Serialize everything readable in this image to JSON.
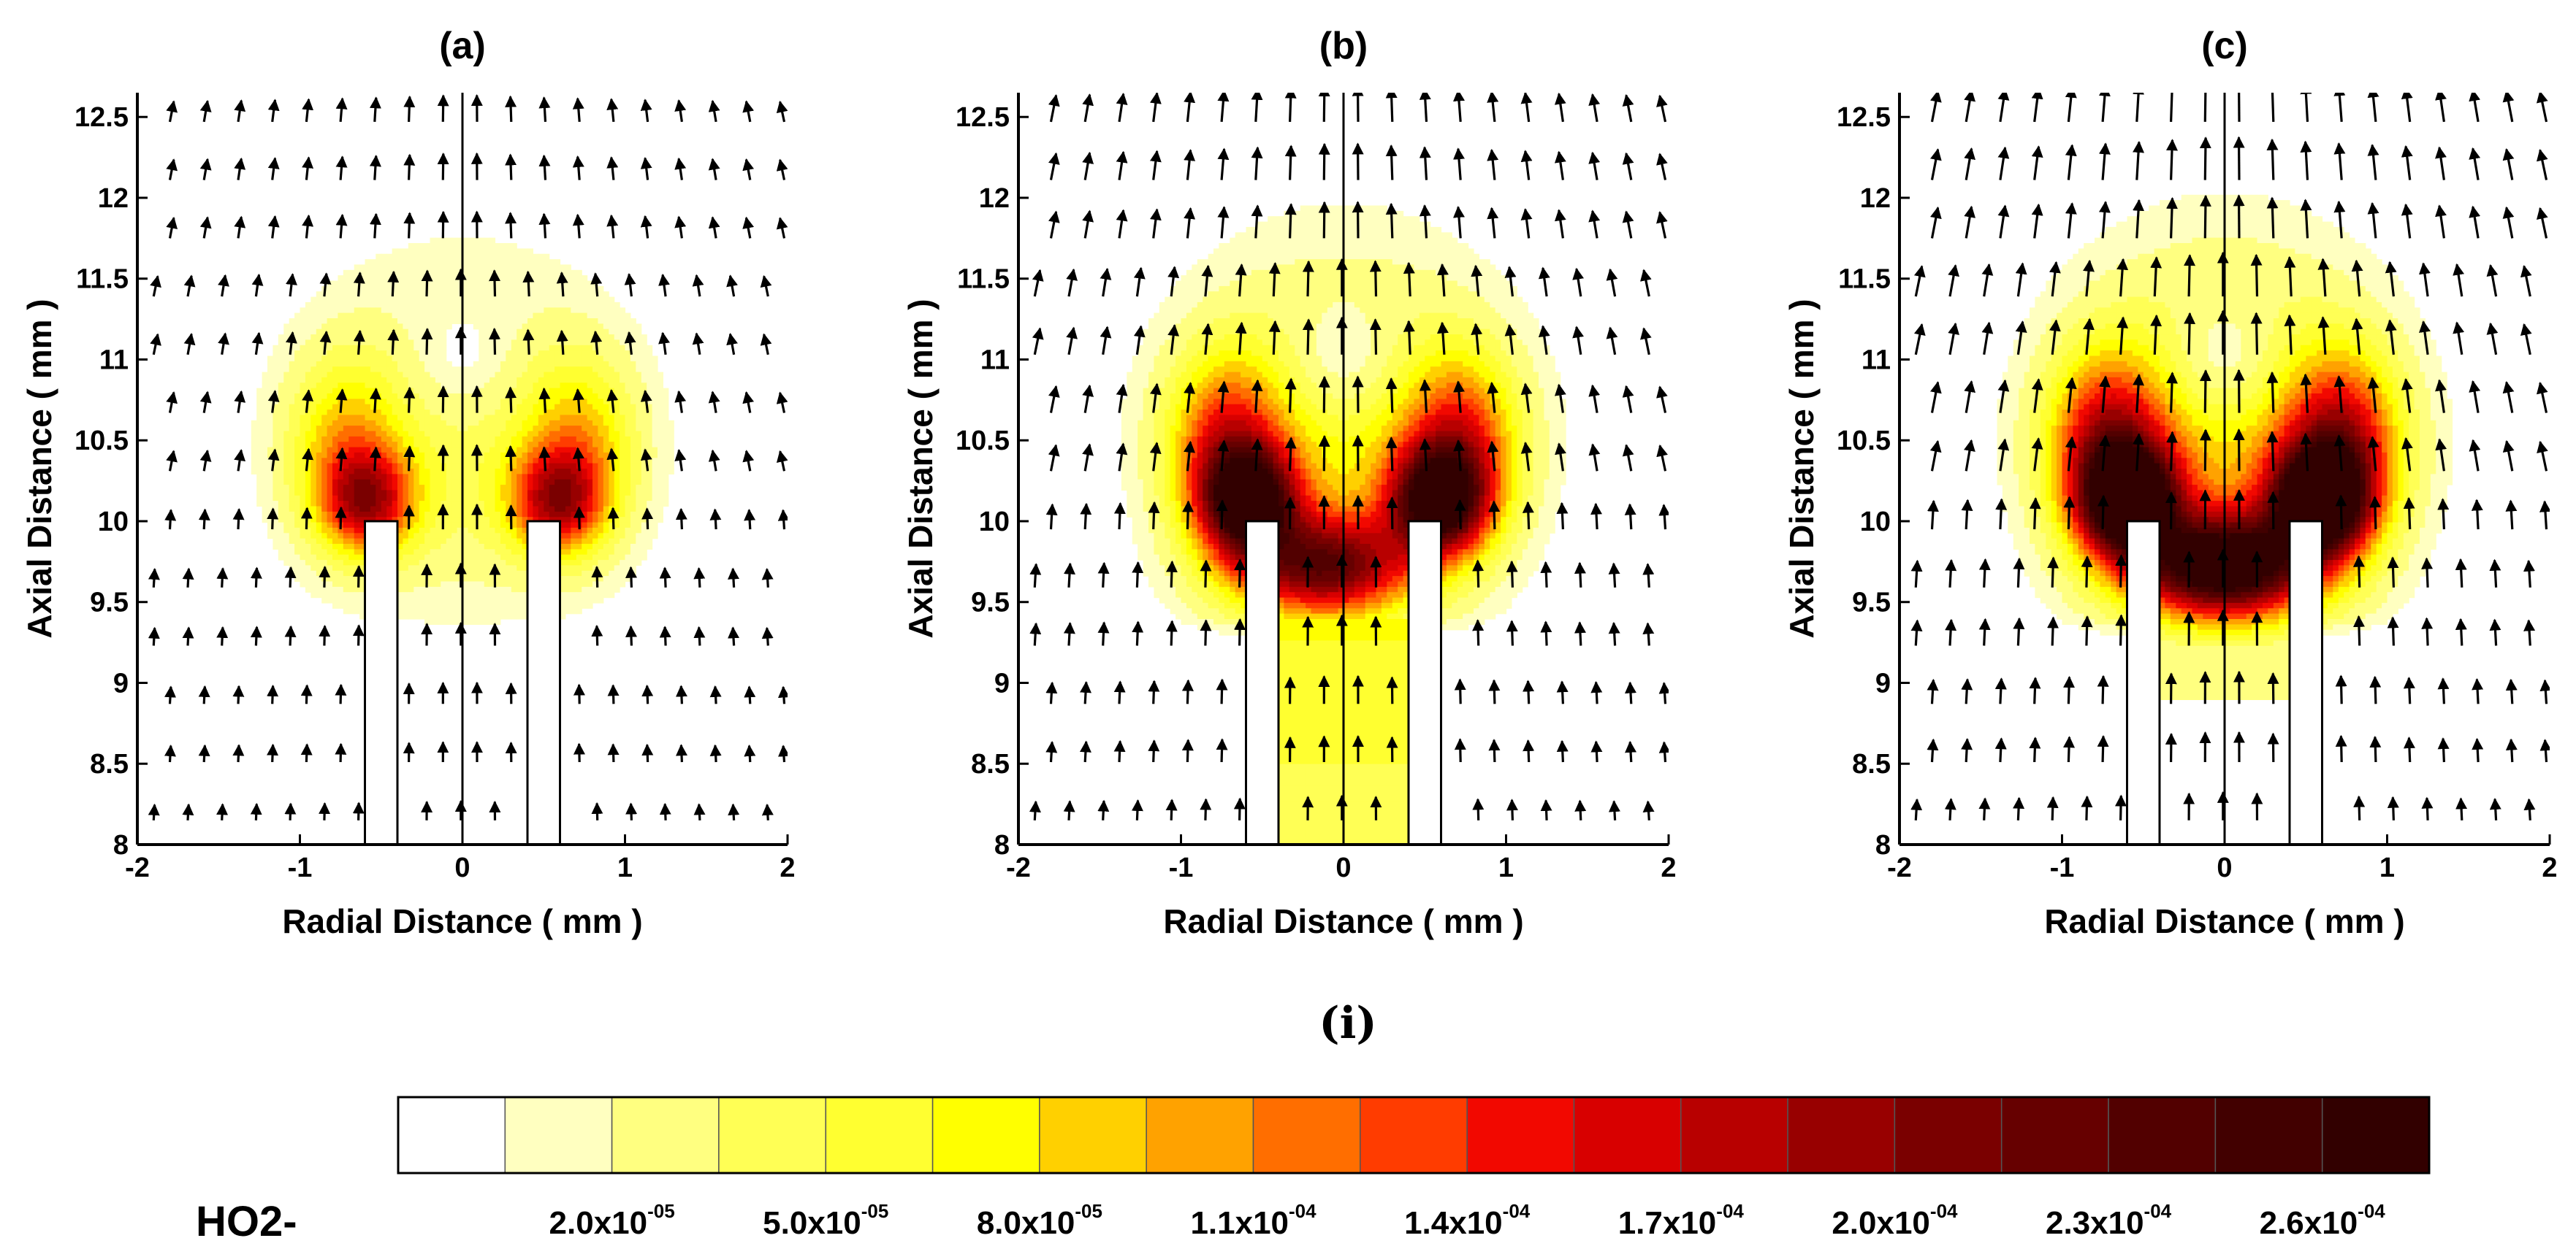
{
  "figure_label": "(i)",
  "colors": {
    "vector": "#000000",
    "wire_fill": "#ffffff",
    "axis": "#000000"
  },
  "chart_data": [
    {
      "type": "heatmap",
      "title": "(a)",
      "xlabel": "Radial Distance ( mm )",
      "ylabel": "Axial Distance ( mm )",
      "xlim": [
        -2,
        2
      ],
      "ylim": [
        8,
        12.65
      ],
      "xticks": [
        "-2",
        "-1",
        "0",
        "1",
        "2"
      ],
      "yticks": [
        "8",
        "8.5",
        "9",
        "9.5",
        "10",
        "10.5",
        "11",
        "11.5",
        "12",
        "12.5"
      ],
      "electrodes": [
        {
          "x0": -0.6,
          "x1": -0.4,
          "y0": 8,
          "y1": 10
        },
        {
          "x0": 0.4,
          "x1": 0.6,
          "y0": 8,
          "y1": 10
        }
      ],
      "centerline_x": 0,
      "field_peak_HO2-": 0.00014,
      "flow_strength": 0.5
    },
    {
      "type": "heatmap",
      "title": "(b)",
      "xlabel": "Radial Distance ( mm )",
      "ylabel": "Axial Distance ( mm )",
      "xlim": [
        -2,
        2
      ],
      "ylim": [
        8,
        12.65
      ],
      "xticks": [
        "-2",
        "-1",
        "0",
        "1",
        "2"
      ],
      "yticks": [
        "8",
        "8.5",
        "9",
        "9.5",
        "10",
        "10.5",
        "11",
        "11.5",
        "12",
        "12.5"
      ],
      "electrodes": [
        {
          "x0": -0.6,
          "x1": -0.4,
          "y0": 8,
          "y1": 10
        },
        {
          "x0": 0.4,
          "x1": 0.6,
          "y0": 8,
          "y1": 10
        }
      ],
      "centerline_x": 0,
      "field_peak_HO2-": 0.00023,
      "flow_strength": 0.8
    },
    {
      "type": "heatmap",
      "title": "(c)",
      "xlabel": "Radial Distance ( mm )",
      "ylabel": "Axial Distance ( mm )",
      "xlim": [
        -2,
        2
      ],
      "ylim": [
        8,
        12.65
      ],
      "xticks": [
        "-2",
        "-1",
        "0",
        "1",
        "2"
      ],
      "yticks": [
        "8",
        "8.5",
        "9",
        "9.5",
        "10",
        "10.5",
        "11",
        "11.5",
        "12",
        "12.5"
      ],
      "electrodes": [
        {
          "x0": -0.6,
          "x1": -0.4,
          "y0": 8,
          "y1": 10
        },
        {
          "x0": 0.4,
          "x1": 0.6,
          "y0": 8,
          "y1": 10
        }
      ],
      "centerline_x": 0,
      "field_peak_HO2-": 0.00028,
      "flow_strength": 1.0
    }
  ],
  "colorbar": {
    "variable": "HO2-",
    "levels": [
      0,
      1e-05,
      2e-05,
      3.5e-05,
      5e-05,
      6.5e-05,
      8e-05,
      9.5e-05,
      0.00011,
      0.000125,
      0.00014,
      0.000155,
      0.00017,
      0.000185,
      0.0002,
      0.000215,
      0.00023,
      0.000245,
      0.00026
    ],
    "colors": [
      "#ffffff",
      "#ffffc0",
      "#ffff80",
      "#ffff55",
      "#ffff30",
      "#ffff00",
      "#ffd000",
      "#ffa200",
      "#ff6e00",
      "#ff3c00",
      "#f20800",
      "#d80000",
      "#b80000",
      "#980000",
      "#7a0000",
      "#660000",
      "#520000",
      "#420000",
      "#320000"
    ],
    "labels": [
      {
        "mantissa": "2.0x10",
        "exponent": "-05"
      },
      {
        "mantissa": "5.0x10",
        "exponent": "-05"
      },
      {
        "mantissa": "8.0x10",
        "exponent": "-05"
      },
      {
        "mantissa": "1.1x10",
        "exponent": "-04"
      },
      {
        "mantissa": "1.4x10",
        "exponent": "-04"
      },
      {
        "mantissa": "1.7x10",
        "exponent": "-04"
      },
      {
        "mantissa": "2.0x10",
        "exponent": "-04"
      },
      {
        "mantissa": "2.3x10",
        "exponent": "-04"
      },
      {
        "mantissa": "2.6x10",
        "exponent": "-04"
      }
    ]
  }
}
